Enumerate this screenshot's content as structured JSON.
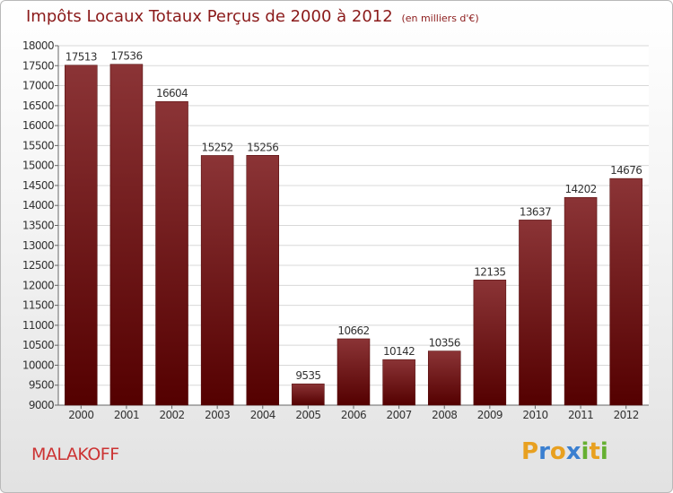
{
  "title": "Impôts Locaux Totaux Perçus de 2000 à 2012",
  "subtitle": "(en milliers d'€)",
  "town": "MALAKOFF",
  "logo": {
    "letters": [
      "P",
      "r",
      "o",
      "x",
      "i",
      "t",
      "i"
    ],
    "colors": [
      "#e8a020",
      "#3a7fd0",
      "#e8a020",
      "#3a7fd0",
      "#66b032",
      "#e8a020",
      "#66b032"
    ]
  },
  "colors": {
    "bar_top": "#8b3436",
    "bar_bottom": "#540000",
    "title": "#8b1a1a",
    "town": "#cc3333"
  },
  "chart_data": {
    "type": "bar",
    "title": "Impôts Locaux Totaux Perçus de 2000 à 2012",
    "categories": [
      "2000",
      "2001",
      "2002",
      "2003",
      "2004",
      "2005",
      "2006",
      "2007",
      "2008",
      "2009",
      "2010",
      "2011",
      "2012"
    ],
    "values": [
      17513,
      17536,
      16604,
      15252,
      15256,
      9535,
      10662,
      10142,
      10356,
      12135,
      13637,
      14202,
      14676
    ],
    "xlabel": "",
    "ylabel": "",
    "ylim": [
      9000,
      18000
    ],
    "yticks": [
      9000,
      9500,
      10000,
      10500,
      11000,
      11500,
      12000,
      12500,
      13000,
      13500,
      14000,
      14500,
      15000,
      15500,
      16000,
      16500,
      17000,
      17500,
      18000
    ],
    "grid": true
  }
}
